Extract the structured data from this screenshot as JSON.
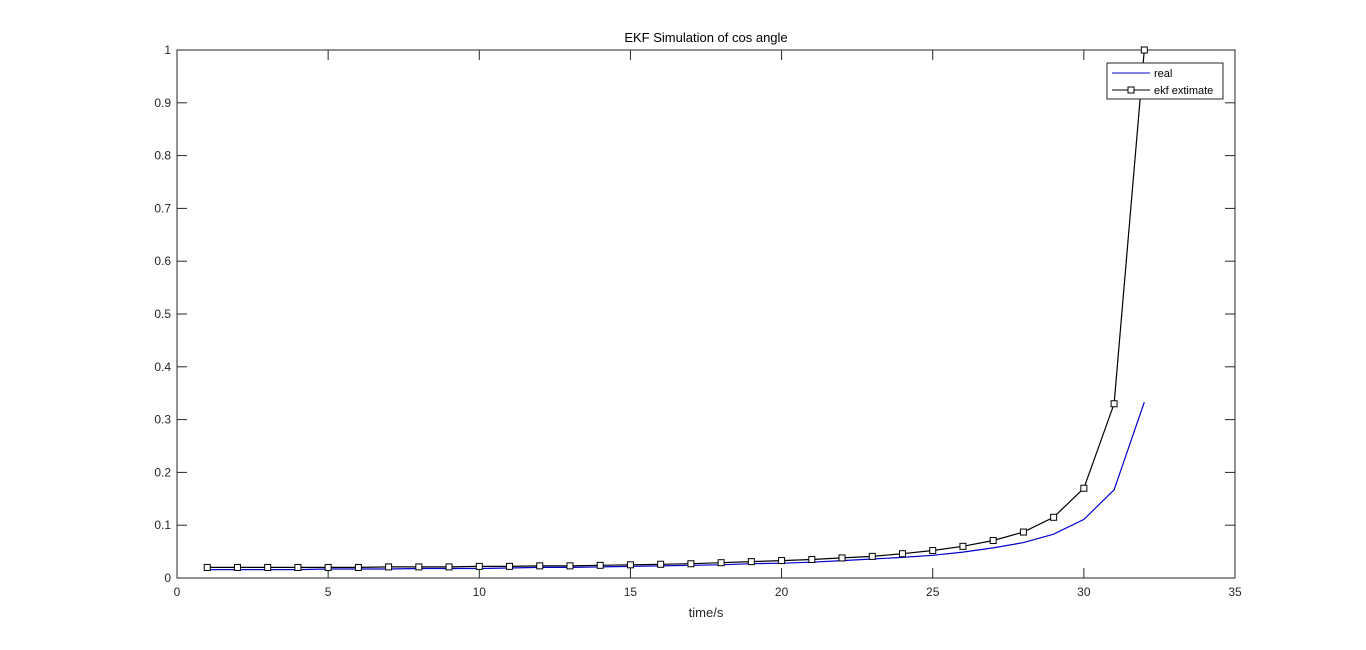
{
  "chart_data": {
    "type": "line",
    "title": "EKF Simulation of cos angle",
    "xlabel": "time/s",
    "ylabel": "",
    "xlim": [
      0,
      35
    ],
    "ylim": [
      0,
      1
    ],
    "xticks": [
      0,
      5,
      10,
      15,
      20,
      25,
      30,
      35
    ],
    "yticks": [
      0,
      0.1,
      0.2,
      0.3,
      0.4,
      0.5,
      0.6,
      0.7,
      0.8,
      0.9,
      1
    ],
    "grid": false,
    "legend_position": "top-right",
    "x": [
      1,
      2,
      3,
      4,
      5,
      6,
      7,
      8,
      9,
      10,
      11,
      12,
      13,
      14,
      15,
      16,
      17,
      18,
      19,
      20,
      21,
      22,
      23,
      24,
      25,
      26,
      27,
      28,
      29,
      30,
      31,
      32
    ],
    "series": [
      {
        "name": "real",
        "color": "#0000cc",
        "marker": "none",
        "values": [
          0.016,
          0.016,
          0.016,
          0.016,
          0.017,
          0.017,
          0.017,
          0.018,
          0.018,
          0.018,
          0.019,
          0.02,
          0.02,
          0.021,
          0.022,
          0.023,
          0.024,
          0.025,
          0.027,
          0.028,
          0.03,
          0.033,
          0.036,
          0.039,
          0.043,
          0.049,
          0.057,
          0.067,
          0.083,
          0.111,
          0.167,
          0.333
        ]
      },
      {
        "name": "ekf extimate",
        "color": "#000000",
        "marker": "square",
        "values": [
          0.02,
          0.02,
          0.02,
          0.02,
          0.02,
          0.02,
          0.021,
          0.021,
          0.021,
          0.022,
          0.022,
          0.023,
          0.023,
          0.024,
          0.025,
          0.026,
          0.027,
          0.029,
          0.031,
          0.033,
          0.035,
          0.038,
          0.041,
          0.046,
          0.052,
          0.06,
          0.071,
          0.087,
          0.115,
          0.17,
          0.33,
          1.0
        ]
      }
    ]
  }
}
